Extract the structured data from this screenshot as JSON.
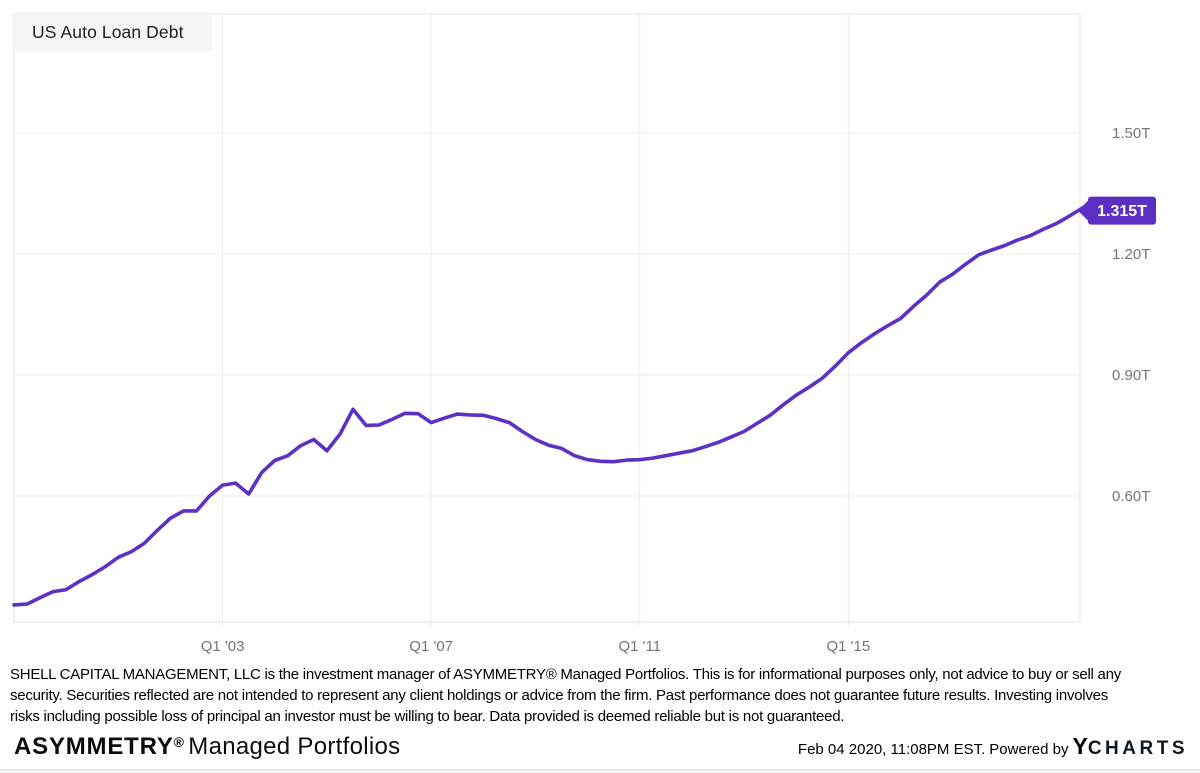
{
  "chart_data": {
    "type": "line",
    "title": "US Auto Loan Debt",
    "unit": "trillions USD",
    "frequency": "quarterly",
    "start_period": "1999 Q1",
    "end_period": "2019 Q3",
    "grid": true,
    "legend_position": "none",
    "ylim": [
      0.288,
      1.795
    ],
    "y_ticks": [
      {
        "label": "1.50T",
        "value": 1.5
      },
      {
        "label": "1.20T",
        "value": 1.2
      },
      {
        "label": "0.90T",
        "value": 0.9
      },
      {
        "label": "0.60T",
        "value": 0.6
      }
    ],
    "x_ticks": [
      {
        "label": "Q1 '03",
        "index": 16
      },
      {
        "label": "Q1 '07",
        "index": 32
      },
      {
        "label": "Q1 '11",
        "index": 48
      },
      {
        "label": "Q1 '15",
        "index": 64
      }
    ],
    "series": [
      {
        "name": "US Auto Loan Debt",
        "values": [
          0.33,
          0.332,
          0.348,
          0.363,
          0.368,
          0.388,
          0.405,
          0.425,
          0.448,
          0.462,
          0.483,
          0.515,
          0.545,
          0.563,
          0.563,
          0.6,
          0.627,
          0.632,
          0.605,
          0.658,
          0.688,
          0.7,
          0.725,
          0.74,
          0.712,
          0.753,
          0.815,
          0.775,
          0.776,
          0.79,
          0.805,
          0.804,
          0.782,
          0.793,
          0.803,
          0.801,
          0.8,
          0.792,
          0.782,
          0.76,
          0.74,
          0.726,
          0.718,
          0.7,
          0.69,
          0.686,
          0.685,
          0.689,
          0.69,
          0.694,
          0.7,
          0.706,
          0.712,
          0.722,
          0.733,
          0.746,
          0.76,
          0.78,
          0.8,
          0.826,
          0.85,
          0.87,
          0.892,
          0.922,
          0.955,
          0.98,
          1.002,
          1.022,
          1.04,
          1.07,
          1.098,
          1.13,
          1.15,
          1.175,
          1.198,
          1.21,
          1.221,
          1.235,
          1.246,
          1.262,
          1.276,
          1.295,
          1.315
        ]
      }
    ],
    "last_point": {
      "label": "1.315T",
      "value": 1.315
    },
    "colors": {
      "line": "#5c31c6",
      "badge": "#5b2ec4",
      "badge_text": "#ffffff",
      "grid": "#ececec",
      "frame": "#e2e2e2",
      "axis_text": "#757575"
    }
  },
  "disclaimer": {
    "text": "SHELL CAPITAL MANAGEMENT, LLC is the investment manager of ASYMMETRY® Managed Portfolios. This is for informational purposes only, not advice to buy or sell any\nsecurity. Securities reflected are not intended to represent any client holdings or advice from the firm. Past performance does not guarantee future results. Investing involves\nrisks including possible loss of principal an investor must be willing to bear. Data provided is deemed reliable but is not guaranteed."
  },
  "footer": {
    "brand": "ASYMMETRY",
    "reg": "®",
    "brand_suffix": "Managed Portfolios",
    "timestamp": "Feb 04 2020, 11:08PM EST.",
    "powered_by": "Powered by",
    "logo_y": "Y",
    "logo_rest": "CHARTS",
    "logo_y_color": "#1191d6"
  }
}
